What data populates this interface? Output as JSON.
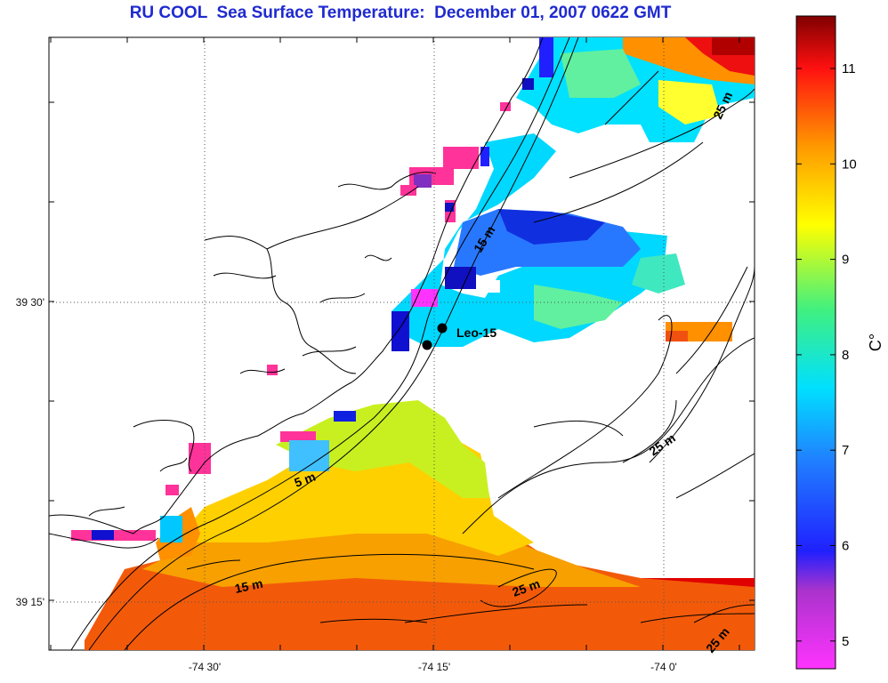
{
  "title": "RU COOL  Sea Surface Temperature:  December 01, 2007 0622 GMT",
  "x_ticks": [
    "-74 30'",
    "-74 15'",
    "-74 0'"
  ],
  "y_ticks": [
    "39 30'",
    "39 15'"
  ],
  "colorbar": {
    "ticks": [
      "11",
      "10",
      "9",
      "8",
      "7",
      "6",
      "5"
    ],
    "unit": "C°"
  },
  "station_label": "Leo-15",
  "depth_labels": [
    "5 m",
    "15 m",
    "15 m",
    "25 m",
    "25 m",
    "25 m",
    "25 m"
  ],
  "colors": {
    "title": "#1f2ad0",
    "land_outline": "#000000",
    "grid": "#555555"
  }
}
